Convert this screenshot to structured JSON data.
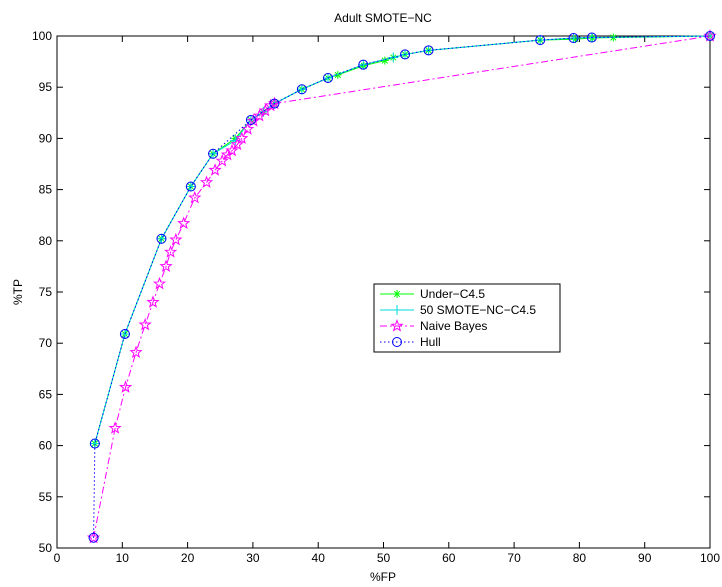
{
  "chart_data": {
    "type": "line",
    "title": "Adult SMOTE−NC",
    "xlabel": "%FP",
    "ylabel": "%TP",
    "xlim": [
      0,
      100
    ],
    "ylim": [
      50,
      100
    ],
    "xticks": [
      0,
      10,
      20,
      30,
      40,
      50,
      60,
      70,
      80,
      90,
      100
    ],
    "yticks": [
      50,
      55,
      60,
      65,
      70,
      75,
      80,
      85,
      90,
      95,
      100
    ],
    "grid": false,
    "legend_position": "center-right",
    "series": [
      {
        "name": "Under−C4.5",
        "color": "#00ff00",
        "marker": "asterisk",
        "line": "solid",
        "x": [
          5.8,
          10.4,
          16,
          20.5,
          23.9,
          27.3,
          29.7,
          31.6,
          33.3,
          37.5,
          41.5,
          43,
          47,
          50.2,
          51.5,
          53.3,
          56.9,
          74,
          79.4,
          82,
          85.2,
          100
        ],
        "y": [
          60.2,
          70.9,
          80.2,
          85.3,
          88.5,
          90,
          91.8,
          92.6,
          93.4,
          94.8,
          95.9,
          96.2,
          97.1,
          97.6,
          97.9,
          98.2,
          98.6,
          99.6,
          99.7,
          99.8,
          99.85,
          100
        ]
      },
      {
        "name": "50 SMOTE−NC−C4.5",
        "color": "#00d8d8",
        "marker": "plus",
        "line": "solid",
        "x": [
          5.8,
          10.4,
          16,
          20.5,
          23.9,
          27.3,
          29.7,
          31.6,
          33.3,
          37.5,
          41.5,
          46.9,
          51.5,
          53.3,
          56.9,
          74,
          79.1,
          81.9,
          100
        ],
        "y": [
          60.2,
          70.9,
          80.2,
          85.3,
          88.5,
          89.8,
          91.8,
          92.6,
          93.4,
          94.8,
          95.9,
          97.2,
          97.9,
          98.2,
          98.6,
          99.6,
          99.8,
          99.85,
          100
        ]
      },
      {
        "name": "Naive Bayes",
        "color": "#ff00ff",
        "marker": "star",
        "line": "dashdot",
        "x": [
          5.6,
          8.9,
          10.5,
          12.1,
          13.5,
          14.7,
          15.7,
          16.7,
          17.4,
          18.2,
          19.4,
          21.1,
          22.9,
          24.2,
          25.3,
          26.1,
          26.8,
          27.6,
          28.3,
          29.2,
          30.1,
          31,
          31.9,
          32.7,
          33.3,
          100
        ],
        "y": [
          51,
          61.7,
          65.7,
          69.1,
          71.8,
          74,
          75.8,
          77.5,
          78.9,
          80.1,
          81.7,
          84.2,
          85.7,
          86.9,
          87.8,
          88.4,
          88.8,
          89.4,
          90,
          90.9,
          91.7,
          92.2,
          92.7,
          93.2,
          93.4,
          100
        ]
      },
      {
        "name": "Hull",
        "color": "#0000ff",
        "marker": "circle",
        "line": "dotted",
        "x": [
          5.6,
          5.8,
          10.4,
          16,
          20.5,
          23.9,
          29.7,
          33.3,
          37.5,
          41.5,
          46.9,
          53.3,
          56.9,
          74,
          79.1,
          81.9,
          100
        ],
        "y": [
          51,
          60.2,
          70.9,
          80.2,
          85.3,
          88.5,
          91.8,
          93.4,
          94.8,
          95.9,
          97.2,
          98.2,
          98.6,
          99.6,
          99.8,
          99.85,
          100
        ]
      }
    ]
  }
}
